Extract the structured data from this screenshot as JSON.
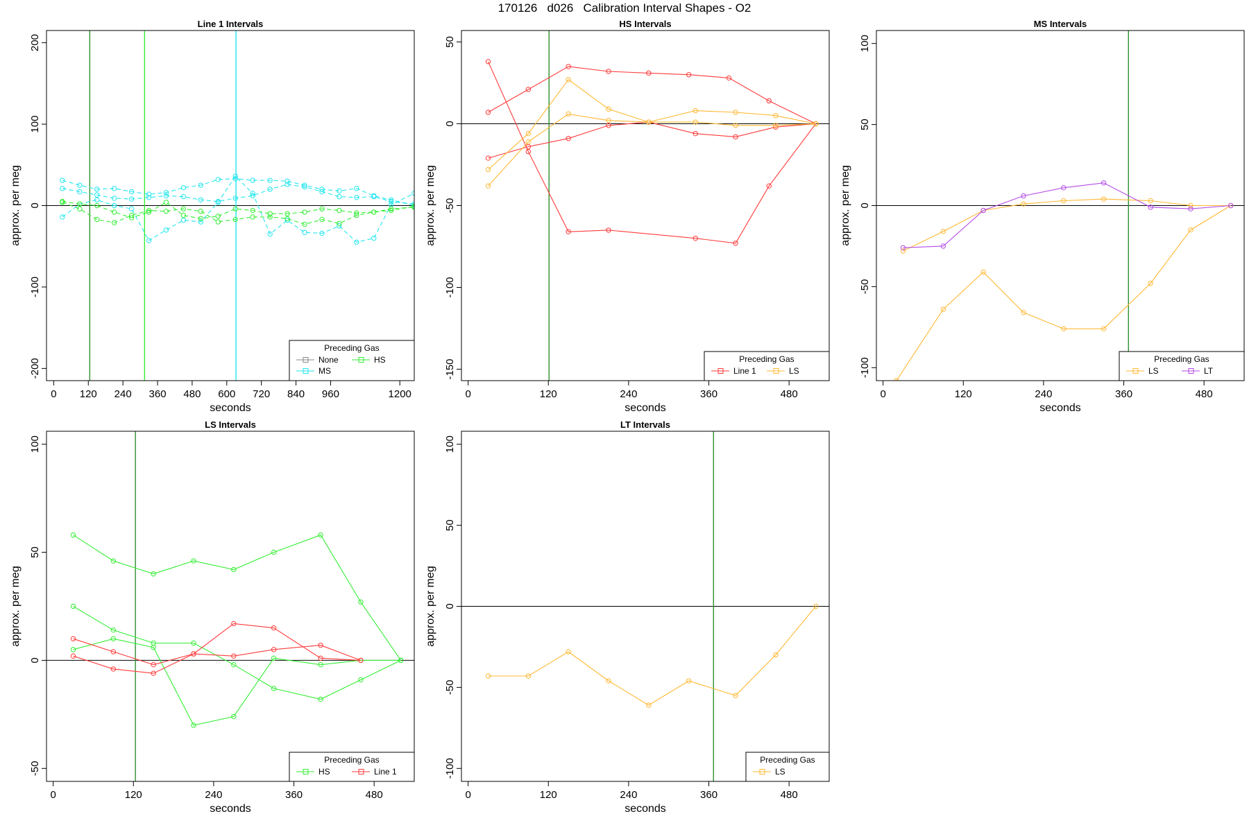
{
  "figure_title": "170126   d026   Calibration Interval Shapes - O2",
  "legend_title": "Preceding Gas",
  "colors": {
    "Line 1": "#ff3a3a",
    "HS": "#33ee33",
    "MS": "#22e6ee",
    "LS": "#ffb833",
    "LT": "#b44ae6",
    "None": "#888888",
    "vline_dark": "#2f8f2f",
    "vline_green": "#33ee33",
    "vline_cyan": "#22e6ee",
    "zero_line": "#000000"
  },
  "chart_data": [
    {
      "type": "line",
      "title": "Line 1 Intervals",
      "xlabel": "seconds",
      "ylabel": "approx. per meg",
      "xlim": [
        -25,
        1250
      ],
      "ylim": [
        -215,
        215
      ],
      "xticks": [
        0,
        120,
        240,
        360,
        480,
        600,
        720,
        840,
        960,
        1200
      ],
      "yticks": [
        -200,
        -100,
        0,
        100,
        200
      ],
      "zero_line": true,
      "vlines": [
        {
          "x": 125,
          "color": "vline_dark"
        },
        {
          "x": 315,
          "color": "vline_green"
        },
        {
          "x": 632,
          "color": "vline_cyan"
        }
      ],
      "legend": {
        "position": "bottom-right",
        "entries": [
          "None",
          "HS",
          "MS"
        ]
      },
      "series": [
        {
          "name": "MS",
          "dash": true,
          "x": [
            30,
            90,
            150,
            210,
            270,
            330,
            390,
            450,
            510,
            570,
            630,
            690,
            750,
            810,
            870,
            930,
            990,
            1050,
            1110,
            1170,
            1250
          ],
          "y": [
            31,
            25,
            20,
            21,
            17,
            14,
            16,
            22,
            25,
            32,
            33,
            31,
            31,
            30,
            25,
            20,
            18,
            21,
            12,
            7,
            0
          ]
        },
        {
          "name": "MS",
          "dash": true,
          "x": [
            30,
            90,
            150,
            210,
            270,
            330,
            390,
            450,
            510,
            570,
            630,
            690,
            750,
            810,
            870,
            930,
            990,
            1050,
            1110,
            1170,
            1250
          ],
          "y": [
            21,
            17,
            13,
            9,
            8,
            10,
            12,
            11,
            7,
            5,
            9,
            12,
            20,
            26,
            23,
            17,
            11,
            10,
            11,
            5,
            2
          ]
        },
        {
          "name": "MS",
          "dash": true,
          "x": [
            30,
            90,
            150,
            210,
            270,
            330,
            390,
            450,
            510,
            570,
            630,
            690,
            750,
            810,
            870,
            930,
            990,
            1050,
            1110,
            1170,
            1250
          ],
          "y": [
            -14,
            2,
            7,
            0,
            -4,
            -43,
            -30,
            -18,
            -20,
            4,
            36,
            15,
            -35,
            -18,
            -33,
            -34,
            -25,
            -45,
            -40,
            1,
            15
          ]
        },
        {
          "name": "HS",
          "dash": true,
          "x": [
            30,
            90,
            150,
            210,
            270,
            330,
            390,
            450,
            510,
            570,
            630,
            690,
            750,
            810,
            870,
            930,
            990,
            1050,
            1110,
            1170,
            1250
          ],
          "y": [
            4,
            -4,
            -17,
            -21,
            -12,
            -6,
            -7,
            -4,
            -7,
            -20,
            -17,
            -14,
            -14,
            -16,
            -23,
            -17,
            -22,
            -12,
            -8,
            -4,
            -2
          ]
        },
        {
          "name": "HS",
          "dash": true,
          "x": [
            30,
            90,
            150,
            210,
            270,
            330,
            390,
            450,
            510,
            570,
            630,
            690,
            750,
            810,
            870,
            930,
            990,
            1050,
            1110,
            1170,
            1250
          ],
          "y": [
            5,
            2,
            0,
            -8,
            -15,
            -8,
            4,
            -12,
            -16,
            -13,
            -4,
            -6,
            -10,
            -10,
            -8,
            -4,
            -6,
            -9,
            -8,
            -6,
            -1
          ]
        }
      ]
    },
    {
      "type": "line",
      "title": "HS Intervals",
      "xlabel": "seconds",
      "ylabel": "approx. per meg",
      "xlim": [
        -10,
        540
      ],
      "ylim": [
        -157,
        57
      ],
      "xticks": [
        0,
        120,
        240,
        360,
        480
      ],
      "yticks": [
        -150,
        -100,
        -50,
        0,
        50
      ],
      "zero_line": true,
      "vlines": [
        {
          "x": 121,
          "color": "vline_dark"
        }
      ],
      "legend": {
        "position": "bottom-right",
        "entries": [
          "Line 1",
          "LS"
        ]
      },
      "series": [
        {
          "name": "Line 1",
          "x": [
            30,
            90,
            150,
            210,
            270,
            330,
            390,
            450,
            520
          ],
          "y": [
            7,
            21,
            35,
            32,
            31,
            30,
            28,
            14,
            0
          ]
        },
        {
          "name": "Line 1",
          "x": [
            30,
            90,
            150,
            210,
            340,
            400,
            450,
            520
          ],
          "y": [
            38,
            -17,
            -66,
            -65,
            -70,
            -73,
            -38,
            0
          ]
        },
        {
          "name": "Line 1",
          "x": [
            30,
            90,
            150,
            210,
            270,
            340,
            400,
            460,
            520
          ],
          "y": [
            -21,
            -14,
            -9,
            -1,
            1,
            -6,
            -8,
            -2,
            0
          ]
        },
        {
          "name": "LS",
          "x": [
            30,
            90,
            150,
            210,
            270,
            340,
            400,
            460,
            520
          ],
          "y": [
            -28,
            -6,
            27,
            9,
            1,
            8,
            7,
            5,
            0
          ]
        },
        {
          "name": "LS",
          "x": [
            30,
            90,
            150,
            210,
            270,
            340,
            400,
            460,
            520
          ],
          "y": [
            -38,
            -11,
            6,
            2,
            1,
            1,
            -1,
            -1,
            0
          ]
        }
      ]
    },
    {
      "type": "line",
      "title": "MS Intervals",
      "xlabel": "seconds",
      "ylabel": "approx. per meg",
      "xlim": [
        -10,
        540
      ],
      "ylim": [
        -108,
        108
      ],
      "xticks": [
        0,
        120,
        240,
        360,
        480
      ],
      "yticks": [
        -100,
        -50,
        0,
        50,
        100
      ],
      "zero_line": true,
      "vlines": [
        {
          "x": 367,
          "color": "vline_dark"
        }
      ],
      "legend": {
        "position": "bottom-right",
        "entries": [
          "LS",
          "LT"
        ]
      },
      "series": [
        {
          "name": "LS",
          "x": [
            30,
            90,
            150,
            210,
            270,
            330,
            400,
            460,
            520
          ],
          "y": [
            -28,
            -16,
            -3,
            1,
            3,
            4,
            3,
            0,
            0
          ]
        },
        {
          "name": "LS",
          "x": [
            20,
            90,
            150,
            210,
            270,
            330,
            400,
            460,
            520
          ],
          "y": [
            -108,
            -64,
            -41,
            -66,
            -76,
            -76,
            -48,
            -15,
            0
          ]
        },
        {
          "name": "LT",
          "x": [
            30,
            90,
            150,
            210,
            270,
            330,
            400,
            460,
            520
          ],
          "y": [
            -26,
            -25,
            -3,
            6,
            11,
            14,
            -1,
            -2,
            0
          ]
        }
      ]
    },
    {
      "type": "line",
      "title": "LS Intervals",
      "xlabel": "seconds",
      "ylabel": "approx. per meg",
      "xlim": [
        -10,
        540
      ],
      "ylim": [
        -56,
        106
      ],
      "xticks": [
        0,
        120,
        240,
        360,
        480
      ],
      "yticks": [
        -50,
        0,
        50,
        100
      ],
      "zero_line": true,
      "vlines": [
        {
          "x": 123,
          "color": "vline_dark"
        }
      ],
      "legend": {
        "position": "bottom-right",
        "entries": [
          "HS",
          "Line 1"
        ]
      },
      "series": [
        {
          "name": "HS",
          "x": [
            30,
            90,
            150,
            210,
            270,
            330,
            400,
            460,
            520
          ],
          "y": [
            58,
            46,
            40,
            46,
            42,
            50,
            58,
            27,
            0
          ]
        },
        {
          "name": "HS",
          "x": [
            30,
            90,
            150,
            210,
            270,
            330,
            400,
            460,
            520
          ],
          "y": [
            25,
            14,
            8,
            8,
            -2,
            -13,
            -18,
            -9,
            0
          ]
        },
        {
          "name": "HS",
          "x": [
            30,
            90,
            150,
            210,
            270,
            330,
            400,
            460,
            520
          ],
          "y": [
            5,
            10,
            6,
            -30,
            -26,
            1,
            -2,
            0,
            0
          ]
        },
        {
          "name": "Line 1",
          "x": [
            30,
            90,
            150,
            210,
            270,
            330,
            400,
            460
          ],
          "y": [
            10,
            4,
            -2,
            3,
            17,
            15,
            1,
            0
          ]
        },
        {
          "name": "Line 1",
          "x": [
            30,
            90,
            150,
            210,
            270,
            330,
            400,
            460
          ],
          "y": [
            2,
            -4,
            -6,
            3,
            2,
            5,
            7,
            0
          ]
        }
      ]
    },
    {
      "type": "line",
      "title": "LT Intervals",
      "xlabel": "seconds",
      "ylabel": "approx. per meg",
      "xlim": [
        -10,
        540
      ],
      "ylim": [
        -108,
        108
      ],
      "xticks": [
        0,
        120,
        240,
        360,
        480
      ],
      "yticks": [
        -100,
        -50,
        0,
        50,
        100
      ],
      "zero_line": true,
      "vlines": [
        {
          "x": 367,
          "color": "vline_dark"
        }
      ],
      "legend": {
        "position": "bottom-right",
        "entries": [
          "LS"
        ]
      },
      "series": [
        {
          "name": "LS",
          "x": [
            30,
            90,
            150,
            210,
            270,
            330,
            400,
            460,
            520
          ],
          "y": [
            -43,
            -43,
            -28,
            -46,
            -61,
            -46,
            -55,
            -30,
            0
          ]
        }
      ]
    }
  ]
}
